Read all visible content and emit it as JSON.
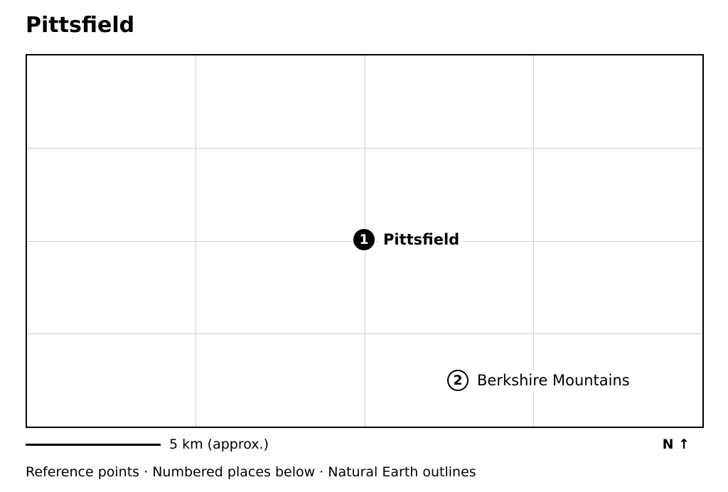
{
  "map": {
    "title": "Pittsfield",
    "places": [
      {
        "number": "1",
        "name": "Pittsfield",
        "style": "primary"
      },
      {
        "number": "2",
        "name": "Berkshire Mountains",
        "style": "secondary"
      }
    ],
    "scale_label": "5 km (approx.)",
    "north_arrow": "N ↑",
    "footer_note": "Reference points · Numbered places below · Natural Earth outlines",
    "colors": {
      "frame": "#000000",
      "grid": "#d0d0d0",
      "marker_primary_fill": "#000000",
      "marker_secondary_fill": "#ffffff"
    }
  }
}
